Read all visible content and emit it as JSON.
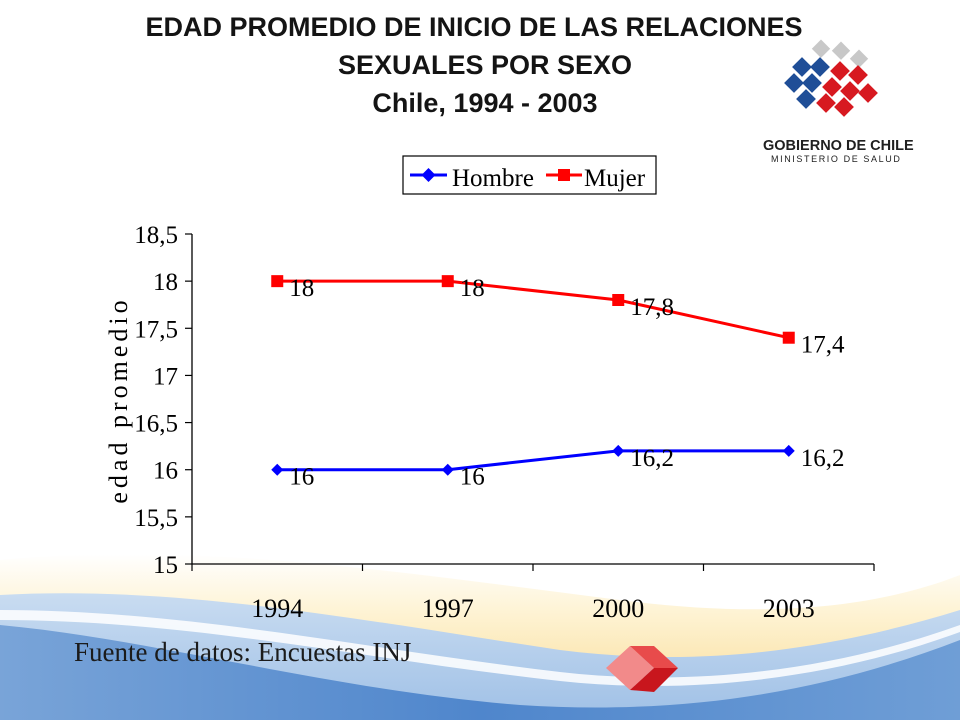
{
  "title": {
    "line1": "EDAD PROMEDIO DE INICIO DE LAS RELACIONES",
    "line2": "SEXUALES  POR SEXO",
    "line3": "Chile, 1994 - 2003"
  },
  "logo": {
    "line1": "GOBIERNO DE CHILE",
    "line2": "MINISTERIO DE SALUD"
  },
  "source": "Fuente de datos:  Encuestas INJ",
  "colors": {
    "hombre": "#0000ff",
    "mujer": "#ff0000",
    "logo_blue": "#1f4e97",
    "logo_red": "#d71920",
    "wave_blue": "#5b8fd0",
    "wave_cream": "#fbe3a8"
  },
  "chart_data": {
    "type": "line",
    "categories": [
      "1994",
      "1997",
      "2000",
      "2003"
    ],
    "series": [
      {
        "name": "Hombre",
        "values": [
          16,
          16,
          16.2,
          16.2
        ],
        "labels": [
          "16",
          "16",
          "16,2",
          "16,2"
        ],
        "color": "#0000ff",
        "marker": "diamond"
      },
      {
        "name": "Mujer",
        "values": [
          18,
          18,
          17.8,
          17.4
        ],
        "labels": [
          "18",
          "18",
          "17,8",
          "17,4"
        ],
        "color": "#ff0000",
        "marker": "square"
      }
    ],
    "ylabel": "edad promedio",
    "ylim": [
      15,
      18.5
    ],
    "yticks": [
      15,
      15.5,
      16,
      16.5,
      17,
      17.5,
      18,
      18.5
    ],
    "ytick_labels": [
      "15",
      "15,5",
      "16",
      "16,5",
      "17",
      "17,5",
      "18",
      "18,5"
    ],
    "legend_position": "top",
    "grid": false
  }
}
